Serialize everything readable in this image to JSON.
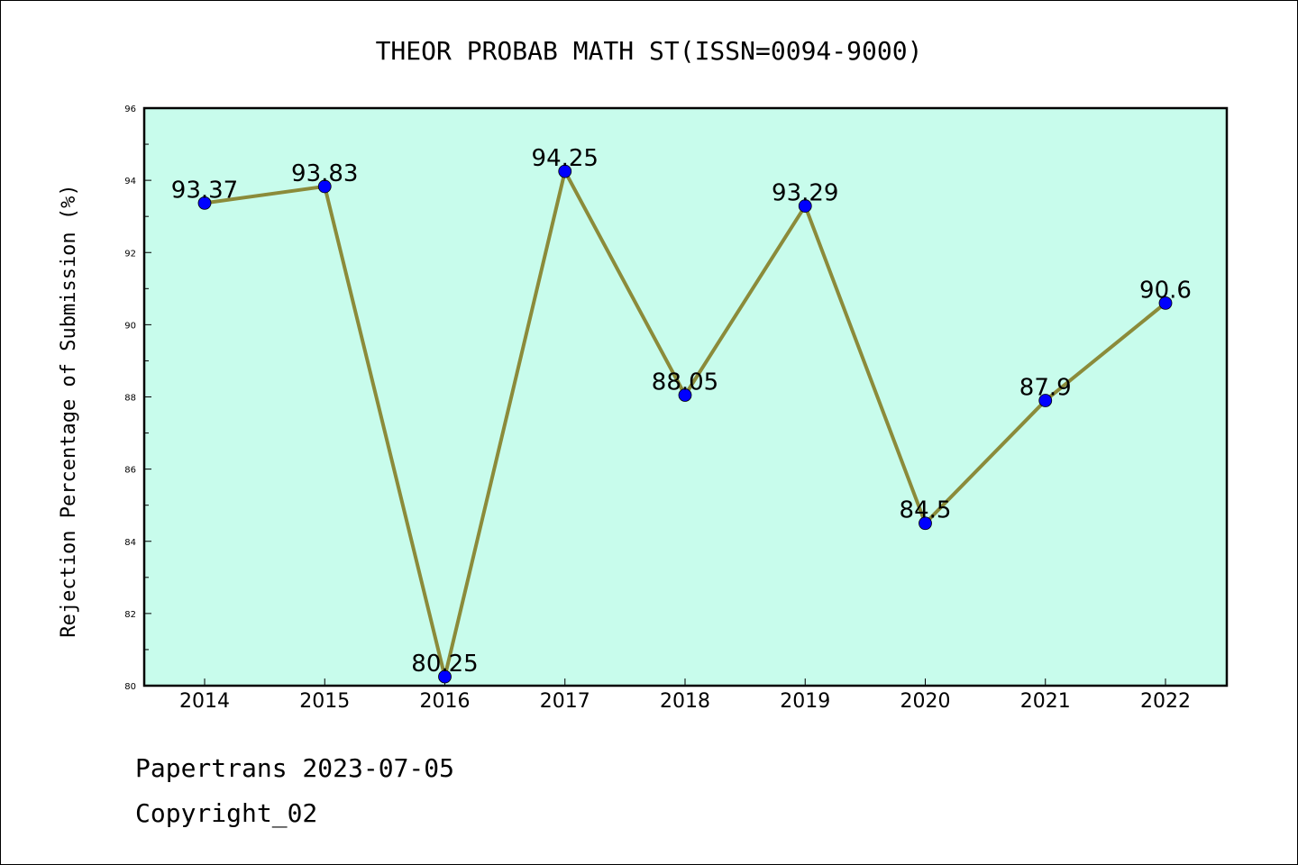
{
  "footer": {
    "line1": "Papertrans 2023-07-05",
    "line2": "Copyright_02"
  },
  "colors": {
    "plot_background": "#c8fcec",
    "line": "#8b8b3a",
    "marker": "#0000ff"
  },
  "chart_data": {
    "type": "line",
    "title": "THEOR PROBAB MATH ST(ISSN=0094-9000)",
    "xlabel": "",
    "ylabel": "Rejection Percentage of Submission (%)",
    "categories": [
      "2014",
      "2015",
      "2016",
      "2017",
      "2018",
      "2019",
      "2020",
      "2021",
      "2022"
    ],
    "series": [
      {
        "values": [
          93.37,
          93.83,
          80.25,
          94.25,
          88.05,
          93.29,
          84.5,
          87.9,
          90.6
        ],
        "labels": [
          "93.37",
          "93.83",
          "80.25",
          "94.25",
          "88.05",
          "93.29",
          "84.5",
          "87.9",
          "90.6"
        ]
      }
    ],
    "ylim": [
      80,
      96
    ],
    "yticks": [
      80,
      82,
      84,
      86,
      88,
      90,
      92,
      94,
      96
    ],
    "grid": false,
    "legend": "none"
  }
}
